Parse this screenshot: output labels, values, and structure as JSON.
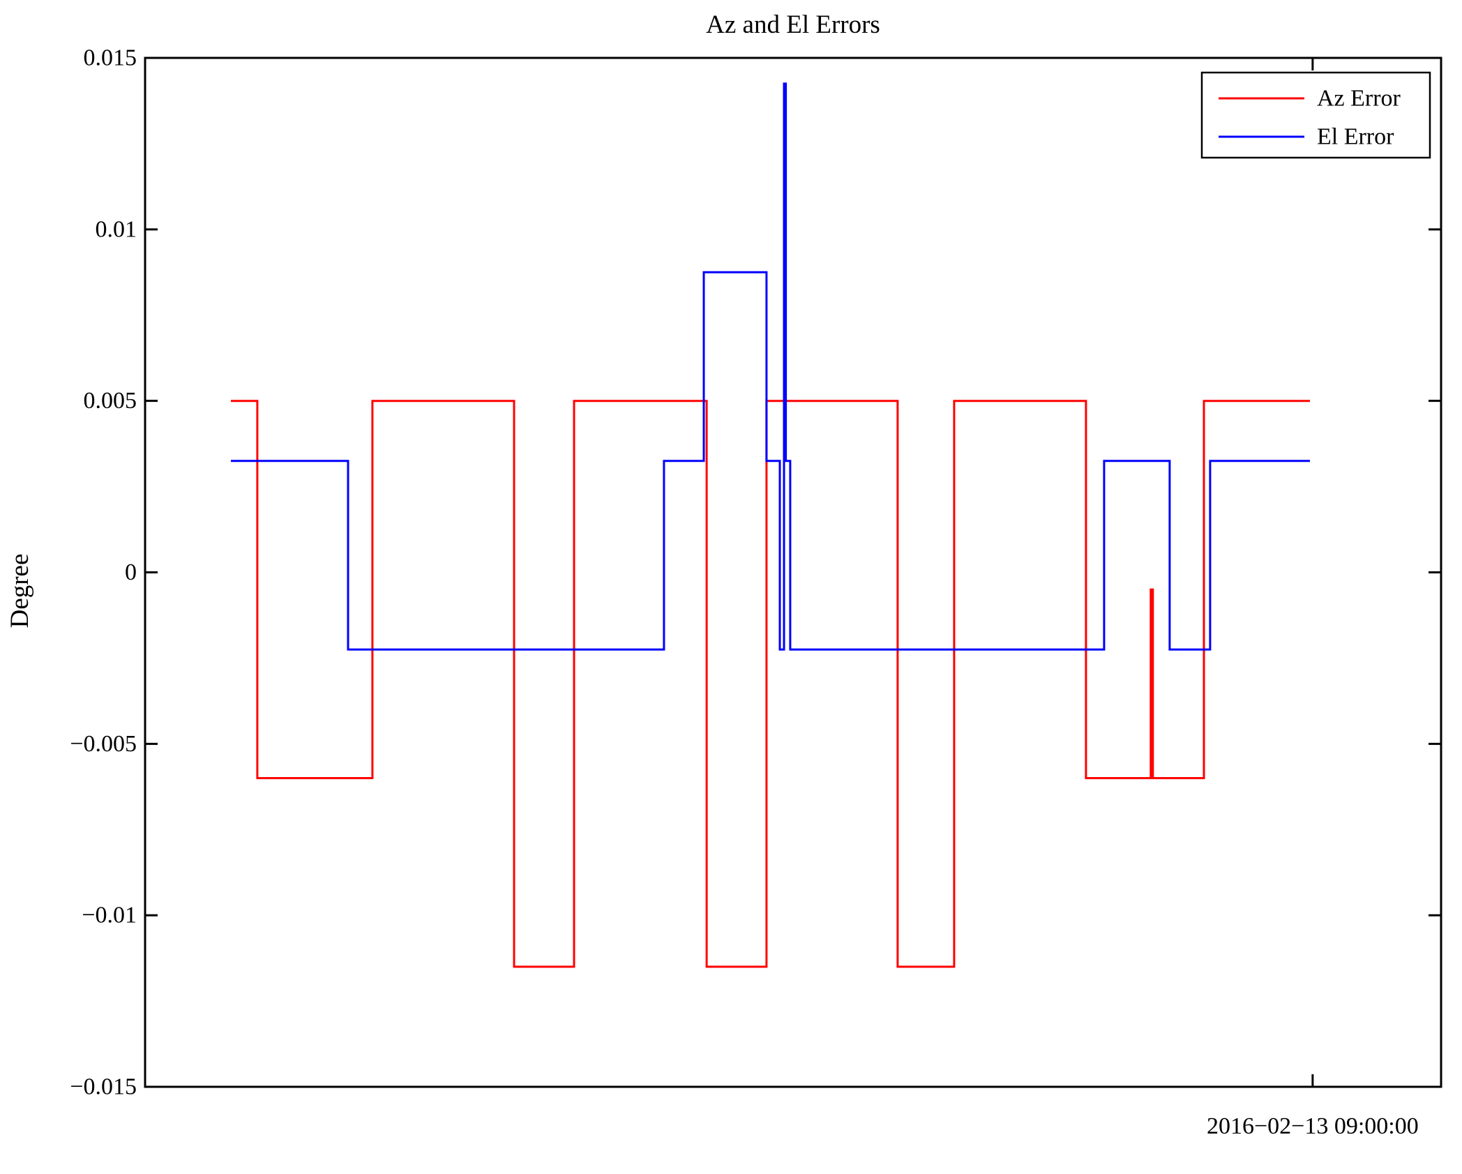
{
  "title": "Az and El Errors",
  "y_axis": {
    "label": "Degree",
    "ticks": [
      "0.015",
      "0.01",
      "0.005",
      "0",
      "−0.005",
      "−0.01",
      "−0.015"
    ],
    "tick_values": [
      0.015,
      0.01,
      0.005,
      0,
      -0.005,
      -0.01,
      -0.015
    ]
  },
  "x_axis": {
    "tick_label": "2016−02−13 09:00:00",
    "tick_frac": 0.9009
  },
  "legend": {
    "items": [
      {
        "label": "Az Error",
        "color": "#ff0000"
      },
      {
        "label": "El Error",
        "color": "#0000ff"
      }
    ]
  },
  "chart_data": {
    "type": "line",
    "subtype": "step",
    "title": "Az and El Errors",
    "xlabel": "",
    "ylabel": "Degree",
    "ylim": [
      -0.015,
      0.015
    ],
    "grid": false,
    "legend_position": "top-right",
    "x_unit": "fraction of x-axis span (time axis; single labeled tick = 2016-02-13 09:00:00 at fraction 0.9009)",
    "series": [
      {
        "name": "Az Error",
        "color": "#ff0000",
        "end_frac": 0.8988,
        "steps": [
          [
            0.0662,
            0.005
          ],
          [
            0.0866,
            -0.006
          ],
          [
            0.1754,
            0.005
          ],
          [
            0.2847,
            -0.0115
          ],
          [
            0.331,
            0.005
          ],
          [
            0.4333,
            -0.0115
          ],
          [
            0.4795,
            0.005
          ],
          [
            0.5807,
            -0.0115
          ],
          [
            0.6243,
            0.005
          ],
          [
            0.726,
            -0.006
          ],
          [
            0.776,
            -0.0005
          ],
          [
            0.7776,
            -0.006
          ],
          [
            0.817,
            0.005
          ]
        ]
      },
      {
        "name": "El Error",
        "color": "#0000ff",
        "end_frac": 0.8988,
        "steps": [
          [
            0.0662,
            0.00325
          ],
          [
            0.1566,
            -0.00225
          ],
          [
            0.4004,
            0.00325
          ],
          [
            0.4311,
            0.00875
          ],
          [
            0.4795,
            0.00325
          ],
          [
            0.4898,
            -0.00225
          ],
          [
            0.493,
            0.01425
          ],
          [
            0.4944,
            0.00325
          ],
          [
            0.4978,
            -0.00225
          ],
          [
            0.74,
            0.00325
          ],
          [
            0.7906,
            -0.00225
          ],
          [
            0.8218,
            0.00325
          ]
        ]
      }
    ]
  }
}
